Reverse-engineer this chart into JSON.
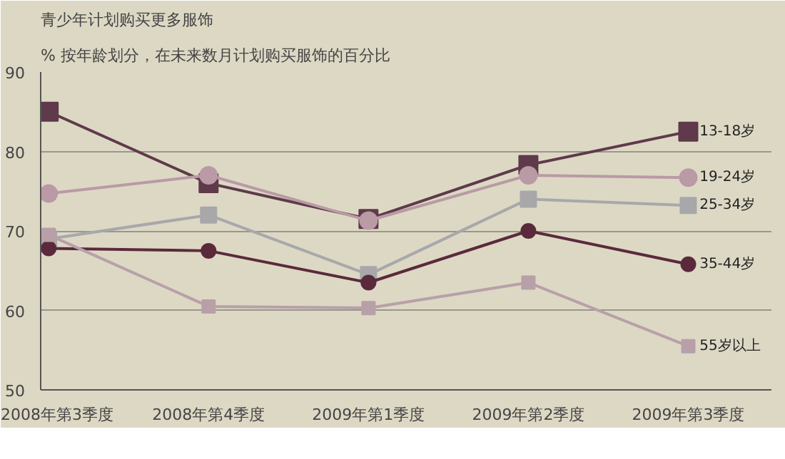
{
  "chart_data": {
    "type": "line",
    "title": "青少年计划购买更多服饰",
    "subtitle": "% 按年龄划分，在未来数月计划购买服饰的百分比",
    "categories": [
      "2008年第3季度",
      "2008年第4季度",
      "2009年第1季度",
      "2009年第2季度",
      "2009年第3季度"
    ],
    "ylim": [
      50,
      90
    ],
    "yticks": [
      50,
      60,
      70,
      80,
      90
    ],
    "grid": "y",
    "legend": false,
    "series": [
      {
        "name": "13-18岁",
        "color": "#5e3a4a",
        "marker": "square",
        "values": [
          85,
          76,
          71.5,
          78.3,
          82.5
        ]
      },
      {
        "name": "19-24岁",
        "color": "#b99aa5",
        "marker": "circle",
        "values": [
          74.7,
          77,
          71.3,
          77,
          76.7
        ]
      },
      {
        "name": "25-34岁",
        "color": "#a8a8ab",
        "marker": "square",
        "values": [
          69,
          72,
          64.5,
          74,
          73.2
        ]
      },
      {
        "name": "35-44岁",
        "color": "#5a2a3c",
        "marker": "circle",
        "values": [
          67.8,
          67.5,
          63.5,
          70,
          65.8
        ]
      },
      {
        "name": "55岁以上",
        "color": "#b8a0a8",
        "marker": "square",
        "values": [
          69.5,
          60.5,
          60.3,
          63.5,
          55.5
        ]
      }
    ]
  }
}
